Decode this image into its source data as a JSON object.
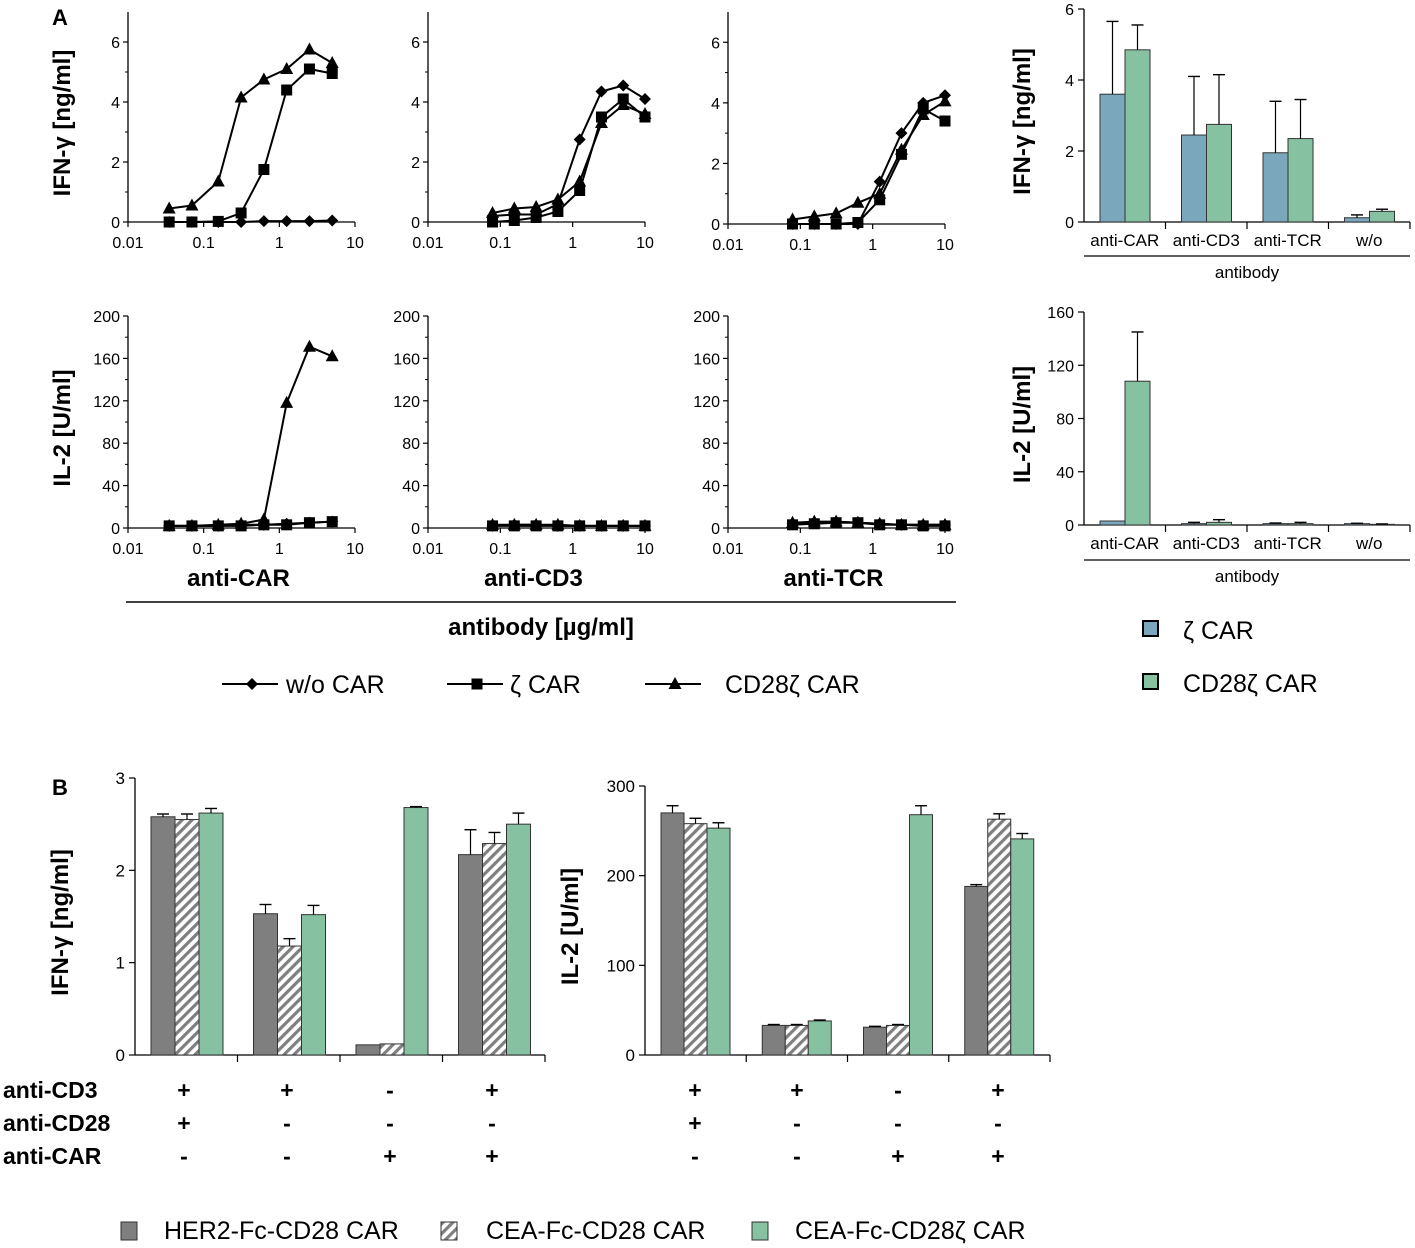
{
  "panel_a_label": "A",
  "panel_b_label": "B",
  "colors": {
    "zeta_car": "#7ba7bc",
    "cd28zeta_car": "#86c1a1",
    "her2": "#7f7f7f",
    "axis": "#000000",
    "hatch": "#7f7f7f"
  },
  "a_common": {
    "x_ticks": [
      "0.01",
      "0.1",
      "1",
      "10"
    ],
    "group_title": "antibody [µg/ml]",
    "legend": [
      {
        "label": "w/o CAR",
        "marker": "diamond"
      },
      {
        "label": "ζ CAR",
        "marker": "square"
      },
      {
        "label": "CD28ζ CAR",
        "marker": "triangle"
      }
    ]
  },
  "a_bar_legend": [
    {
      "label": "ζ CAR",
      "color": "#7ba7bc"
    },
    {
      "label": "CD28ζ CAR",
      "color": "#86c1a1"
    }
  ],
  "b_legend": [
    {
      "label": "HER2-Fc-CD28 CAR",
      "pattern": "solid"
    },
    {
      "label": "CEA-Fc-CD28 CAR",
      "pattern": "hatched"
    },
    {
      "label": "CEA-Fc-CD28ζ CAR",
      "pattern": "solid-green"
    }
  ],
  "b_conditions": {
    "rows": [
      {
        "label": "anti-CD3",
        "values": [
          "+",
          "+",
          "-",
          "+"
        ]
      },
      {
        "label": "anti-CD28",
        "values": [
          "+",
          "-",
          "-",
          "-"
        ]
      },
      {
        "label": "anti-CAR",
        "values": [
          "-",
          "-",
          "+",
          "+"
        ]
      }
    ]
  },
  "chart_data": [
    {
      "id": "a_ifng_anticar",
      "type": "line",
      "xscale": "log",
      "xlabel": "",
      "ylabel": "IFN-γ [ng/ml]",
      "ylim": [
        0,
        7
      ],
      "yticks": [
        "0",
        "2",
        "4",
        "6"
      ],
      "xlim": [
        0.01,
        10
      ],
      "series": [
        {
          "name": "w/o CAR",
          "marker": "diamond",
          "x": [
            0.035,
            0.07,
            0.156,
            0.3125,
            0.625,
            1.25,
            2.5,
            5
          ],
          "y": [
            0,
            0,
            0,
            0,
            0.03,
            0.03,
            0.03,
            0.05
          ]
        },
        {
          "name": "ζ CAR",
          "marker": "square",
          "x": [
            0.035,
            0.07,
            0.156,
            0.3125,
            0.625,
            1.25,
            2.5,
            5
          ],
          "y": [
            0,
            0,
            0.02,
            0.3,
            1.75,
            4.4,
            5.1,
            4.95
          ]
        },
        {
          "name": "CD28ζ CAR",
          "marker": "triangle",
          "x": [
            0.035,
            0.07,
            0.156,
            0.3125,
            0.625,
            1.25,
            2.5,
            5
          ],
          "y": [
            0.45,
            0.55,
            1.35,
            4.15,
            4.75,
            5.1,
            5.75,
            5.3
          ]
        }
      ]
    },
    {
      "id": "a_ifng_anticd3",
      "type": "line",
      "xscale": "log",
      "xlabel": "",
      "ylabel": "",
      "ylim": [
        0,
        7
      ],
      "yticks": [
        "0",
        "2",
        "4",
        "6"
      ],
      "xlim": [
        0.01,
        10
      ],
      "series": [
        {
          "name": "w/o CAR",
          "marker": "diamond",
          "x": [
            0.078,
            0.156,
            0.3125,
            0.625,
            1.25,
            2.5,
            5,
            10
          ],
          "y": [
            0.2,
            0.25,
            0.25,
            0.6,
            2.75,
            4.35,
            4.55,
            4.1
          ]
        },
        {
          "name": "ζ CAR",
          "marker": "square",
          "x": [
            0.078,
            0.156,
            0.3125,
            0.625,
            1.25,
            2.5,
            5,
            10
          ],
          "y": [
            0,
            0.05,
            0.15,
            0.35,
            1.05,
            3.5,
            4.1,
            3.5
          ]
        },
        {
          "name": "CD28ζ CAR",
          "marker": "triangle",
          "x": [
            0.078,
            0.156,
            0.3125,
            0.625,
            1.25,
            2.5,
            5,
            10
          ],
          "y": [
            0.3,
            0.45,
            0.5,
            0.75,
            1.35,
            3.3,
            3.9,
            3.6
          ]
        }
      ]
    },
    {
      "id": "a_ifng_antitcr",
      "type": "line",
      "xscale": "log",
      "xlabel": "",
      "ylabel": "",
      "ylim": [
        0,
        7
      ],
      "yticks": [
        "0",
        "2",
        "4",
        "6"
      ],
      "xlim": [
        0.01,
        10
      ],
      "series": [
        {
          "name": "w/o CAR",
          "marker": "diamond",
          "x": [
            0.078,
            0.156,
            0.3125,
            0.625,
            1.25,
            2.5,
            5,
            10
          ],
          "y": [
            0,
            0,
            0,
            0,
            1.4,
            3.0,
            4.0,
            4.25
          ]
        },
        {
          "name": "ζ CAR",
          "marker": "square",
          "x": [
            0.078,
            0.156,
            0.3125,
            0.625,
            1.25,
            2.5,
            5,
            10
          ],
          "y": [
            0,
            0,
            0,
            0.05,
            0.8,
            2.3,
            3.8,
            3.4
          ]
        },
        {
          "name": "CD28ζ CAR",
          "marker": "triangle",
          "x": [
            0.078,
            0.156,
            0.3125,
            0.625,
            1.25,
            2.5,
            5,
            10
          ],
          "y": [
            0.15,
            0.25,
            0.35,
            0.7,
            1.0,
            2.45,
            3.6,
            4.05
          ]
        }
      ]
    },
    {
      "id": "a_il2_anticar",
      "type": "line",
      "xscale": "log",
      "xlabel": "anti-CAR",
      "ylabel": "IL-2 [U/ml]",
      "ylim": [
        0,
        200
      ],
      "yticks": [
        "0",
        "40",
        "80",
        "120",
        "160",
        "200"
      ],
      "xlim": [
        0.01,
        10
      ],
      "series": [
        {
          "name": "w/o CAR",
          "marker": "diamond",
          "x": [
            0.035,
            0.07,
            0.156,
            0.3125,
            0.625,
            1.25,
            2.5,
            5
          ],
          "y": [
            2,
            2,
            2,
            3,
            3,
            4,
            5,
            6
          ]
        },
        {
          "name": "ζ CAR",
          "marker": "square",
          "x": [
            0.035,
            0.07,
            0.156,
            0.3125,
            0.625,
            1.25,
            2.5,
            5
          ],
          "y": [
            2,
            2,
            2,
            2,
            3,
            3,
            5,
            6
          ]
        },
        {
          "name": "CD28ζ CAR",
          "marker": "triangle",
          "x": [
            0.035,
            0.07,
            0.156,
            0.3125,
            0.625,
            1.25,
            2.5,
            5
          ],
          "y": [
            2,
            2,
            3,
            4,
            8,
            118,
            171,
            162
          ]
        }
      ]
    },
    {
      "id": "a_il2_anticd3",
      "type": "line",
      "xscale": "log",
      "xlabel": "anti-CD3",
      "ylabel": "",
      "ylim": [
        0,
        200
      ],
      "yticks": [
        "0",
        "40",
        "80",
        "120",
        "160",
        "200"
      ],
      "xlim": [
        0.01,
        10
      ],
      "series": [
        {
          "name": "w/o CAR",
          "marker": "diamond",
          "x": [
            0.078,
            0.156,
            0.3125,
            0.625,
            1.25,
            2.5,
            5,
            10
          ],
          "y": [
            2,
            3,
            3,
            2,
            2,
            2,
            2,
            2
          ]
        },
        {
          "name": "ζ CAR",
          "marker": "square",
          "x": [
            0.078,
            0.156,
            0.3125,
            0.625,
            1.25,
            2.5,
            5,
            10
          ],
          "y": [
            2,
            2,
            2,
            2,
            2,
            2,
            2,
            2
          ]
        },
        {
          "name": "CD28ζ CAR",
          "marker": "triangle",
          "x": [
            0.078,
            0.156,
            0.3125,
            0.625,
            1.25,
            2.5,
            5,
            10
          ],
          "y": [
            3,
            3,
            3,
            3,
            2,
            2,
            2,
            2
          ]
        }
      ]
    },
    {
      "id": "a_il2_antitcr",
      "type": "line",
      "xscale": "log",
      "xlabel": "anti-TCR",
      "ylabel": "",
      "ylim": [
        0,
        200
      ],
      "yticks": [
        "0",
        "40",
        "80",
        "120",
        "160",
        "200"
      ],
      "xlim": [
        0.01,
        10
      ],
      "series": [
        {
          "name": "w/o CAR",
          "marker": "diamond",
          "x": [
            0.078,
            0.156,
            0.3125,
            0.625,
            1.25,
            2.5,
            5,
            10
          ],
          "y": [
            4,
            5,
            6,
            5,
            4,
            3,
            3,
            3
          ]
        },
        {
          "name": "ζ CAR",
          "marker": "square",
          "x": [
            0.078,
            0.156,
            0.3125,
            0.625,
            1.25,
            2.5,
            5,
            10
          ],
          "y": [
            3,
            4,
            5,
            5,
            3,
            3,
            2,
            2
          ]
        },
        {
          "name": "CD28ζ CAR",
          "marker": "triangle",
          "x": [
            0.078,
            0.156,
            0.3125,
            0.625,
            1.25,
            2.5,
            5,
            10
          ],
          "y": [
            5,
            6,
            6,
            5,
            4,
            3,
            3,
            3
          ]
        }
      ]
    },
    {
      "id": "a_bar_ifng",
      "type": "bar",
      "xlabel": "antibody",
      "ylabel": "IFN-γ [ng/ml]",
      "ylim": [
        0,
        6
      ],
      "yticks": [
        "0",
        "2",
        "4",
        "6"
      ],
      "categories": [
        "anti-CAR",
        "anti-CD3",
        "anti-TCR",
        "w/o"
      ],
      "series": [
        {
          "name": "ζ CAR",
          "values": [
            3.6,
            2.45,
            1.95,
            0.12
          ],
          "errors": [
            2.05,
            1.65,
            1.45,
            0.08
          ]
        },
        {
          "name": "CD28ζ CAR",
          "values": [
            4.85,
            2.75,
            2.35,
            0.3
          ],
          "errors": [
            0.7,
            1.4,
            1.1,
            0.06
          ]
        }
      ]
    },
    {
      "id": "a_bar_il2",
      "type": "bar",
      "xlabel": "antibody",
      "ylabel": "IL-2 [U/ml]",
      "ylim": [
        0,
        160
      ],
      "yticks": [
        "0",
        "40",
        "80",
        "120",
        "160"
      ],
      "categories": [
        "anti-CAR",
        "anti-CD3",
        "anti-TCR",
        "w/o"
      ],
      "series": [
        {
          "name": "ζ CAR",
          "values": [
            3,
            1,
            1,
            1
          ],
          "errors": [
            0,
            1,
            0.5,
            0.3
          ]
        },
        {
          "name": "CD28ζ CAR",
          "values": [
            108,
            2,
            1,
            0.5
          ],
          "errors": [
            37,
            2,
            1,
            0.3
          ]
        }
      ]
    },
    {
      "id": "b_ifng",
      "type": "bar",
      "xlabel": "",
      "ylabel": "IFN-γ [ng/ml]",
      "ylim": [
        0,
        3
      ],
      "yticks": [
        "0",
        "1",
        "2",
        "3"
      ],
      "categories": [
        "anti-CD3+ anti-CD28+ anti-CAR-",
        "anti-CD3+ anti-CD28- anti-CAR-",
        "anti-CD3- anti-CD28- anti-CAR+",
        "anti-CD3+ anti-CD28- anti-CAR+"
      ],
      "series": [
        {
          "name": "HER2-Fc-CD28 CAR",
          "values": [
            2.58,
            1.53,
            0.11,
            2.17
          ],
          "errors": [
            0.03,
            0.1,
            0,
            0.27
          ]
        },
        {
          "name": "CEA-Fc-CD28 CAR",
          "values": [
            2.55,
            1.18,
            0.12,
            2.29
          ],
          "errors": [
            0.06,
            0.08,
            0,
            0.12
          ]
        },
        {
          "name": "CEA-Fc-CD28ζ CAR",
          "values": [
            2.62,
            1.52,
            2.68,
            2.5
          ],
          "errors": [
            0.05,
            0.1,
            0.01,
            0.12
          ]
        }
      ]
    },
    {
      "id": "b_il2",
      "type": "bar",
      "xlabel": "",
      "ylabel": "IL-2 [U/ml]",
      "ylim": [
        0,
        300
      ],
      "yticks": [
        "0",
        "100",
        "200",
        "300"
      ],
      "categories": [
        "anti-CD3+ anti-CD28+ anti-CAR-",
        "anti-CD3+ anti-CD28- anti-CAR-",
        "anti-CD3- anti-CD28- anti-CAR+",
        "anti-CD3+ anti-CD28- anti-CAR+"
      ],
      "series": [
        {
          "name": "HER2-Fc-CD28 CAR",
          "values": [
            270,
            33,
            31,
            188
          ],
          "errors": [
            8,
            1,
            1,
            2
          ]
        },
        {
          "name": "CEA-Fc-CD28 CAR",
          "values": [
            258,
            33,
            33,
            263
          ],
          "errors": [
            6,
            1,
            1,
            6
          ]
        },
        {
          "name": "CEA-Fc-CD28ζ CAR",
          "values": [
            253,
            38,
            268,
            241
          ],
          "errors": [
            6,
            1,
            10,
            6
          ]
        }
      ]
    }
  ]
}
